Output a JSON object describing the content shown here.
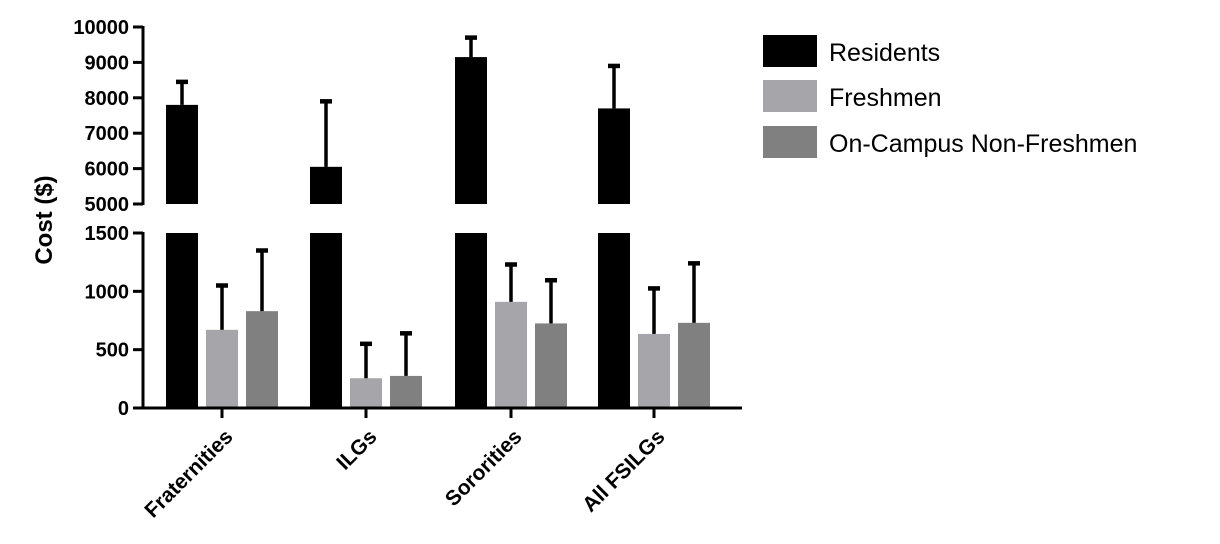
{
  "chart_data": {
    "type": "bar",
    "ylabel": "Cost ($)",
    "categories": [
      "Fraternities",
      "ILGs",
      "Sororities",
      "All FSILGs"
    ],
    "y_axis_broken": true,
    "y_segments": [
      {
        "range": [
          0,
          1500
        ],
        "ticks": [
          0,
          500,
          1000,
          1500
        ]
      },
      {
        "range": [
          5000,
          10000
        ],
        "ticks": [
          5000,
          6000,
          7000,
          8000,
          9000,
          10000
        ]
      }
    ],
    "series": [
      {
        "name": "Residents",
        "color": "#000000",
        "values": [
          7800,
          6050,
          9150,
          7700
        ],
        "errors": [
          650,
          1850,
          550,
          1200
        ]
      },
      {
        "name": "Freshmen",
        "color": "#a6a6aa",
        "values": [
          670,
          255,
          910,
          635
        ],
        "errors": [
          380,
          295,
          320,
          390
        ]
      },
      {
        "name": "On-Campus Non-Freshmen",
        "color": "#808080",
        "values": [
          830,
          275,
          725,
          730
        ],
        "errors": [
          520,
          365,
          370,
          510
        ]
      }
    ],
    "legend_position": "right",
    "grid": false
  }
}
